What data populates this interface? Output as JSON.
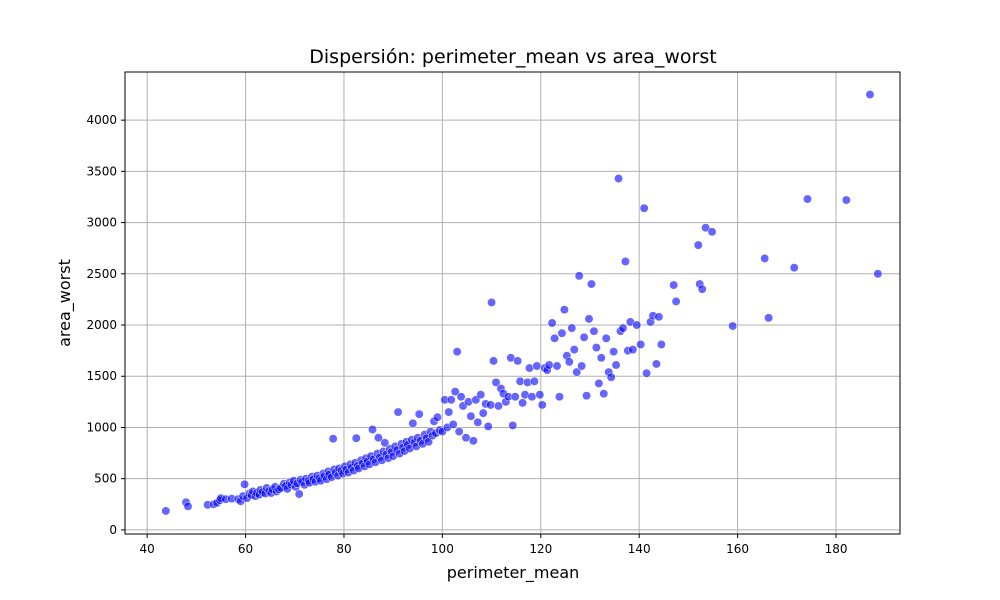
{
  "chart_data": {
    "type": "scatter",
    "title": "Dispersión: perimeter_mean vs area_worst",
    "xlabel": "perimeter_mean",
    "ylabel": "area_worst",
    "xlim": [
      35.5,
      193
    ],
    "ylim": [
      -40,
      4470
    ],
    "xticks": [
      40,
      60,
      80,
      100,
      120,
      140,
      160,
      180
    ],
    "yticks": [
      0,
      500,
      1000,
      1500,
      2000,
      2500,
      3000,
      3500,
      4000
    ],
    "grid": true,
    "point_color": "#0000ff",
    "point_opacity": 0.6,
    "points": [
      [
        43.8,
        185
      ],
      [
        47.9,
        270
      ],
      [
        48.3,
        230
      ],
      [
        52.3,
        245
      ],
      [
        53.5,
        250
      ],
      [
        54.2,
        265
      ],
      [
        54.8,
        290
      ],
      [
        55.0,
        310
      ],
      [
        56.0,
        300
      ],
      [
        57.2,
        305
      ],
      [
        58.5,
        300
      ],
      [
        59.0,
        280
      ],
      [
        59.5,
        330
      ],
      [
        59.8,
        445
      ],
      [
        60.3,
        310
      ],
      [
        60.8,
        355
      ],
      [
        61.2,
        340
      ],
      [
        61.5,
        375
      ],
      [
        62.0,
        330
      ],
      [
        62.3,
        360
      ],
      [
        62.8,
        345
      ],
      [
        63.0,
        390
      ],
      [
        63.5,
        370
      ],
      [
        64.0,
        355
      ],
      [
        64.3,
        410
      ],
      [
        64.8,
        380
      ],
      [
        65.2,
        360
      ],
      [
        65.5,
        395
      ],
      [
        66.0,
        420
      ],
      [
        66.3,
        375
      ],
      [
        66.8,
        395
      ],
      [
        67.2,
        410
      ],
      [
        67.8,
        450
      ],
      [
        68.2,
        430
      ],
      [
        68.5,
        400
      ],
      [
        69.0,
        465
      ],
      [
        69.3,
        440
      ],
      [
        69.8,
        480
      ],
      [
        70.2,
        420
      ],
      [
        70.5,
        455
      ],
      [
        70.9,
        350
      ],
      [
        71.2,
        490
      ],
      [
        71.5,
        470
      ],
      [
        72.0,
        440
      ],
      [
        72.3,
        500
      ],
      [
        72.8,
        480
      ],
      [
        73.0,
        460
      ],
      [
        73.5,
        520
      ],
      [
        73.8,
        495
      ],
      [
        74.2,
        470
      ],
      [
        74.6,
        530
      ],
      [
        75.0,
        505
      ],
      [
        75.3,
        480
      ],
      [
        75.8,
        550
      ],
      [
        76.0,
        525
      ],
      [
        76.5,
        495
      ],
      [
        76.8,
        570
      ],
      [
        77.0,
        540
      ],
      [
        77.5,
        515
      ],
      [
        77.8,
        890
      ],
      [
        78.0,
        590
      ],
      [
        78.3,
        560
      ],
      [
        78.8,
        530
      ],
      [
        79.0,
        600
      ],
      [
        79.5,
        580
      ],
      [
        79.8,
        550
      ],
      [
        80.2,
        620
      ],
      [
        80.5,
        590
      ],
      [
        80.9,
        560
      ],
      [
        81.3,
        640
      ],
      [
        81.6,
        610
      ],
      [
        82.0,
        580
      ],
      [
        82.3,
        655
      ],
      [
        82.5,
        895
      ],
      [
        82.8,
        625
      ],
      [
        83.0,
        600
      ],
      [
        83.5,
        680
      ],
      [
        83.8,
        650
      ],
      [
        84.2,
        620
      ],
      [
        84.5,
        700
      ],
      [
        84.8,
        670
      ],
      [
        85.2,
        640
      ],
      [
        85.5,
        720
      ],
      [
        85.8,
        980
      ],
      [
        86.0,
        690
      ],
      [
        86.4,
        660
      ],
      [
        86.8,
        745
      ],
      [
        87.0,
        900
      ],
      [
        87.3,
        710
      ],
      [
        87.7,
        680
      ],
      [
        88.0,
        765
      ],
      [
        88.3,
        850
      ],
      [
        88.6,
        735
      ],
      [
        89.0,
        700
      ],
      [
        89.3,
        790
      ],
      [
        89.7,
        760
      ],
      [
        90.0,
        720
      ],
      [
        90.4,
        815
      ],
      [
        90.8,
        780
      ],
      [
        91.0,
        1150
      ],
      [
        91.3,
        745
      ],
      [
        91.7,
        840
      ],
      [
        92.0,
        805
      ],
      [
        92.3,
        770
      ],
      [
        92.7,
        860
      ],
      [
        93.0,
        830
      ],
      [
        93.4,
        795
      ],
      [
        93.8,
        880
      ],
      [
        94.0,
        1040
      ],
      [
        94.3,
        850
      ],
      [
        94.7,
        815
      ],
      [
        95.0,
        900
      ],
      [
        95.3,
        1130
      ],
      [
        95.6,
        870
      ],
      [
        96.0,
        840
      ],
      [
        96.4,
        930
      ],
      [
        96.8,
        895
      ],
      [
        97.2,
        860
      ],
      [
        97.6,
        960
      ],
      [
        98.0,
        920
      ],
      [
        98.3,
        1060
      ],
      [
        98.7,
        945
      ],
      [
        99.0,
        1100
      ],
      [
        99.5,
        975
      ],
      [
        100.0,
        960
      ],
      [
        100.5,
        1270
      ],
      [
        101.0,
        1000
      ],
      [
        101.3,
        1150
      ],
      [
        101.8,
        1270
      ],
      [
        102.2,
        1030
      ],
      [
        102.6,
        1350
      ],
      [
        103.0,
        1740
      ],
      [
        103.4,
        960
      ],
      [
        103.8,
        1300
      ],
      [
        104.2,
        1210
      ],
      [
        104.8,
        900
      ],
      [
        105.3,
        1250
      ],
      [
        105.8,
        1110
      ],
      [
        106.3,
        870
      ],
      [
        106.8,
        1270
      ],
      [
        107.2,
        1050
      ],
      [
        107.8,
        1320
      ],
      [
        108.3,
        1140
      ],
      [
        108.8,
        1230
      ],
      [
        109.3,
        1010
      ],
      [
        109.8,
        1220
      ],
      [
        110.0,
        2220
      ],
      [
        110.4,
        1650
      ],
      [
        110.9,
        1440
      ],
      [
        111.4,
        1210
      ],
      [
        111.9,
        1380
      ],
      [
        112.4,
        1330
      ],
      [
        112.9,
        1250
      ],
      [
        113.4,
        1300
      ],
      [
        113.9,
        1680
      ],
      [
        114.3,
        1020
      ],
      [
        114.8,
        1300
      ],
      [
        115.3,
        1650
      ],
      [
        115.8,
        1450
      ],
      [
        116.3,
        1240
      ],
      [
        116.8,
        1320
      ],
      [
        117.3,
        1440
      ],
      [
        117.7,
        1580
      ],
      [
        118.2,
        1300
      ],
      [
        118.7,
        1450
      ],
      [
        119.2,
        1600
      ],
      [
        119.8,
        1320
      ],
      [
        120.3,
        1220
      ],
      [
        120.8,
        1580
      ],
      [
        121.3,
        1560
      ],
      [
        121.7,
        1610
      ],
      [
        122.3,
        2020
      ],
      [
        122.8,
        1870
      ],
      [
        123.3,
        1600
      ],
      [
        123.8,
        1300
      ],
      [
        124.3,
        1920
      ],
      [
        124.8,
        2150
      ],
      [
        125.3,
        1700
      ],
      [
        125.8,
        1640
      ],
      [
        126.3,
        1970
      ],
      [
        126.8,
        1760
      ],
      [
        127.3,
        1540
      ],
      [
        127.8,
        2480
      ],
      [
        128.3,
        1600
      ],
      [
        128.8,
        1880
      ],
      [
        129.3,
        1310
      ],
      [
        129.8,
        2060
      ],
      [
        130.3,
        2400
      ],
      [
        130.8,
        1940
      ],
      [
        131.3,
        1780
      ],
      [
        131.8,
        1430
      ],
      [
        132.3,
        1680
      ],
      [
        132.8,
        1330
      ],
      [
        133.3,
        1870
      ],
      [
        133.8,
        1540
      ],
      [
        134.3,
        1490
      ],
      [
        134.8,
        1740
      ],
      [
        135.3,
        1610
      ],
      [
        135.8,
        3430
      ],
      [
        136.2,
        1940
      ],
      [
        136.7,
        1970
      ],
      [
        137.2,
        2620
      ],
      [
        137.7,
        1750
      ],
      [
        138.2,
        2030
      ],
      [
        138.7,
        1760
      ],
      [
        139.5,
        2000
      ],
      [
        140.3,
        1810
      ],
      [
        141.0,
        3140
      ],
      [
        141.5,
        1530
      ],
      [
        142.3,
        2030
      ],
      [
        142.8,
        2090
      ],
      [
        143.5,
        1620
      ],
      [
        144.0,
        2080
      ],
      [
        144.5,
        1810
      ],
      [
        147.0,
        2390
      ],
      [
        147.5,
        2230
      ],
      [
        152.0,
        2780
      ],
      [
        152.3,
        2400
      ],
      [
        152.8,
        2350
      ],
      [
        153.5,
        2950
      ],
      [
        154.8,
        2910
      ],
      [
        159.0,
        1990
      ],
      [
        165.5,
        2650
      ],
      [
        166.3,
        2070
      ],
      [
        171.5,
        2560
      ],
      [
        174.2,
        3230
      ],
      [
        182.1,
        3220
      ],
      [
        186.9,
        4250
      ],
      [
        188.5,
        2500
      ]
    ]
  }
}
